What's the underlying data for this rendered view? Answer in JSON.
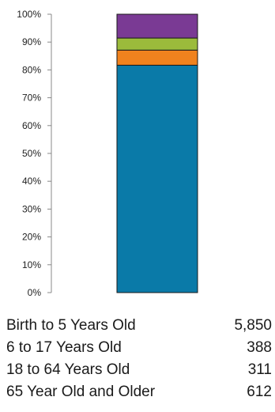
{
  "chart_data": {
    "type": "bar",
    "stacked": true,
    "normalized": true,
    "categories": [
      ""
    ],
    "series": [
      {
        "name": "Birth to 5 Years Old",
        "value": 5850,
        "value_label": "5,850",
        "color": "#0a7aa8"
      },
      {
        "name": "6 to 17 Years Old",
        "value": 388,
        "value_label": "388",
        "color": "#f0821e"
      },
      {
        "name": "18 to 64 Years Old",
        "value": 311,
        "value_label": "311",
        "color": "#9bbb3b"
      },
      {
        "name": "65 Year Old and Older",
        "value": 612,
        "value_label": "612",
        "color": "#7a3a94"
      }
    ],
    "y_ticks": [
      "0%",
      "10%",
      "20%",
      "30%",
      "40%",
      "50%",
      "60%",
      "70%",
      "80%",
      "90%",
      "100%"
    ],
    "ylim": [
      0,
      100
    ],
    "grid": false,
    "legend_placement": "bottom"
  }
}
